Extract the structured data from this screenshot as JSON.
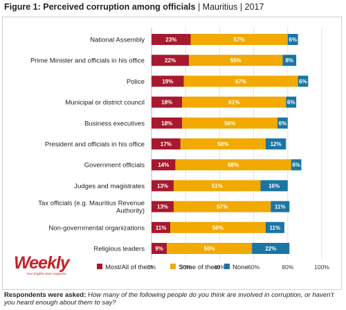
{
  "header": {
    "title": "Figure 1: Perceived corruption among officials",
    "separator": "|",
    "country": "Mauritius",
    "year": "2017"
  },
  "logo": {
    "name": "Weekly",
    "tagline": "Your English news magazine"
  },
  "footnote": {
    "lead": "Respondents were asked:",
    "question": "How many of the following people do you think are involved in corruption, or haven't you heard enough about them to say?"
  },
  "chart_data": {
    "type": "bar",
    "orientation": "horizontal",
    "stacked": true,
    "categories": [
      "National Assembly",
      "Prime Minister and officials in his office",
      "Police",
      "Municipal or district council",
      "Business executives",
      "President and officials in his office",
      "Government  officials",
      "Judges and magistrates",
      [
        "Tax officials (e.g. Mauritius Revenue",
        "Authority)"
      ],
      "Non-governmental organizations",
      "Religious leaders"
    ],
    "series": [
      {
        "name": "Most/All of them",
        "color": "#a6192e",
        "values": [
          23,
          22,
          19,
          18,
          18,
          17,
          14,
          13,
          13,
          11,
          9
        ]
      },
      {
        "name": "Some of them",
        "color": "#f2a900",
        "values": [
          57,
          55,
          67,
          61,
          56,
          50,
          68,
          51,
          57,
          56,
          50
        ]
      },
      {
        "name": "None",
        "color": "#1b75a3",
        "values": [
          6,
          8,
          6,
          6,
          6,
          12,
          6,
          16,
          11,
          11,
          22
        ]
      }
    ],
    "xlim": [
      0,
      100
    ],
    "xticks": [
      "0%",
      "20%",
      "40%",
      "60%",
      "80%",
      "100%"
    ],
    "grid": true,
    "legend_position": "bottom"
  }
}
